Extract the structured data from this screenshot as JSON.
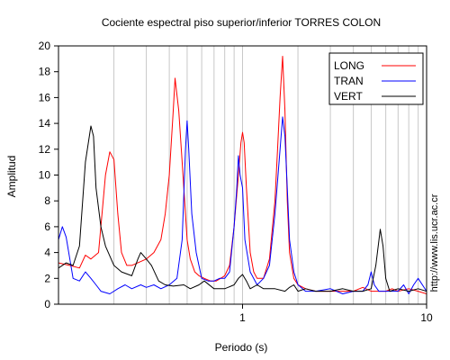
{
  "chart_data": {
    "type": "line",
    "title": "Cociente espectral piso superior/inferior  TORRES COLON",
    "xlabel": "Periodo (s)",
    "ylabel": "Amplitud",
    "xscale": "log",
    "xlim": [
      0.1,
      10
    ],
    "ylim": [
      0,
      20
    ],
    "x_major_ticks": [
      1,
      10
    ],
    "x_major_tick_labels": [
      "1",
      "10"
    ],
    "y_ticks": [
      0,
      2,
      4,
      6,
      8,
      10,
      12,
      14,
      16,
      18,
      20
    ],
    "y_tick_labels": [
      "0",
      "2",
      "4",
      "6",
      "8",
      "10",
      "12",
      "14",
      "16",
      "18",
      "20"
    ],
    "grid": "vertical-log",
    "legend_position": "top-right",
    "side_text": "http://www.lis.ucr.ac.cr",
    "series": [
      {
        "name": "LONG",
        "color": "#ff0000",
        "x": [
          0.1,
          0.115,
          0.13,
          0.14,
          0.15,
          0.165,
          0.18,
          0.19,
          0.2,
          0.21,
          0.22,
          0.235,
          0.25,
          0.28,
          0.3,
          0.33,
          0.36,
          0.38,
          0.4,
          0.42,
          0.43,
          0.45,
          0.47,
          0.5,
          0.52,
          0.55,
          0.58,
          0.62,
          0.67,
          0.72,
          0.76,
          0.8,
          0.85,
          0.9,
          0.95,
          0.98,
          1.0,
          1.02,
          1.05,
          1.1,
          1.15,
          1.2,
          1.3,
          1.4,
          1.5,
          1.55,
          1.6,
          1.65,
          1.7,
          1.75,
          1.8,
          1.9,
          2.0,
          2.2,
          2.5,
          3.0,
          3.5,
          4.0,
          4.5,
          5.0,
          5.5,
          6.0,
          6.5,
          7.0,
          8.0,
          9.0,
          10.0
        ],
        "y": [
          3.2,
          3.0,
          2.8,
          3.8,
          3.5,
          4.0,
          10.0,
          11.8,
          11.2,
          7.0,
          4.0,
          3.0,
          3.0,
          3.3,
          3.5,
          4.0,
          5.0,
          7.0,
          10.0,
          15.0,
          17.5,
          15.0,
          11.0,
          5.0,
          3.5,
          2.5,
          2.2,
          2.0,
          1.8,
          1.8,
          2.0,
          2.2,
          3.0,
          6.0,
          10.0,
          12.5,
          13.3,
          12.5,
          9.0,
          4.0,
          2.5,
          2.0,
          2.0,
          3.5,
          8.0,
          12.0,
          16.0,
          19.2,
          15.0,
          8.0,
          4.0,
          2.0,
          1.5,
          1.2,
          1.0,
          1.0,
          1.0,
          1.0,
          1.3,
          1.0,
          1.0,
          1.0,
          1.2,
          1.0,
          1.2,
          1.0,
          0.8
        ]
      },
      {
        "name": "TRAN",
        "color": "#0000ff",
        "x": [
          0.1,
          0.105,
          0.11,
          0.12,
          0.13,
          0.14,
          0.15,
          0.16,
          0.17,
          0.19,
          0.21,
          0.23,
          0.25,
          0.28,
          0.3,
          0.33,
          0.36,
          0.4,
          0.44,
          0.47,
          0.49,
          0.5,
          0.51,
          0.53,
          0.56,
          0.6,
          0.65,
          0.7,
          0.75,
          0.8,
          0.85,
          0.9,
          0.93,
          0.95,
          0.97,
          1.0,
          1.03,
          1.1,
          1.2,
          1.3,
          1.4,
          1.5,
          1.6,
          1.65,
          1.7,
          1.75,
          1.8,
          1.9,
          2.0,
          2.2,
          2.5,
          3.0,
          3.5,
          4.0,
          4.5,
          4.8,
          5.0,
          5.2,
          5.5,
          6.0,
          7.0,
          7.5,
          8.0,
          8.5,
          9.0,
          10.0
        ],
        "y": [
          5.0,
          6.0,
          5.2,
          2.0,
          1.8,
          2.5,
          2.0,
          1.5,
          1.0,
          0.8,
          1.2,
          1.5,
          1.2,
          1.5,
          1.3,
          1.5,
          1.2,
          1.5,
          2.0,
          5.0,
          12.0,
          14.2,
          12.0,
          7.0,
          4.0,
          2.0,
          1.8,
          1.8,
          2.0,
          2.0,
          2.5,
          6.0,
          9.0,
          11.5,
          10.0,
          9.0,
          5.0,
          2.5,
          1.5,
          2.0,
          3.0,
          7.0,
          12.0,
          14.5,
          13.0,
          9.0,
          5.0,
          2.5,
          1.5,
          1.0,
          1.0,
          1.2,
          0.8,
          1.0,
          1.0,
          1.5,
          2.5,
          1.5,
          1.0,
          1.0,
          1.0,
          1.5,
          0.8,
          1.5,
          2.0,
          1.0
        ]
      },
      {
        "name": "VERT",
        "color": "#000000",
        "x": [
          0.1,
          0.11,
          0.12,
          0.13,
          0.14,
          0.15,
          0.155,
          0.16,
          0.17,
          0.18,
          0.2,
          0.22,
          0.25,
          0.27,
          0.28,
          0.3,
          0.32,
          0.35,
          0.38,
          0.42,
          0.48,
          0.52,
          0.58,
          0.62,
          0.7,
          0.8,
          0.9,
          0.95,
          1.0,
          1.05,
          1.1,
          1.2,
          1.3,
          1.5,
          1.7,
          1.8,
          1.9,
          2.0,
          2.2,
          2.5,
          3.0,
          3.5,
          4.0,
          4.5,
          5.0,
          5.3,
          5.6,
          5.8,
          6.0,
          6.3,
          7.0,
          8.0,
          9.0,
          10.0
        ],
        "y": [
          2.8,
          3.2,
          3.0,
          4.5,
          11.0,
          13.8,
          13.0,
          9.0,
          6.0,
          4.5,
          3.0,
          2.5,
          2.2,
          3.5,
          4.0,
          3.5,
          3.0,
          1.8,
          1.5,
          1.4,
          1.5,
          1.2,
          1.5,
          1.8,
          1.2,
          1.2,
          1.5,
          2.0,
          2.3,
          1.8,
          1.2,
          1.5,
          1.2,
          1.2,
          1.0,
          1.3,
          1.5,
          1.0,
          1.2,
          1.0,
          1.0,
          1.2,
          1.0,
          1.0,
          1.2,
          3.0,
          5.8,
          4.5,
          2.0,
          1.0,
          1.2,
          1.0,
          1.2,
          1.0
        ]
      }
    ]
  }
}
